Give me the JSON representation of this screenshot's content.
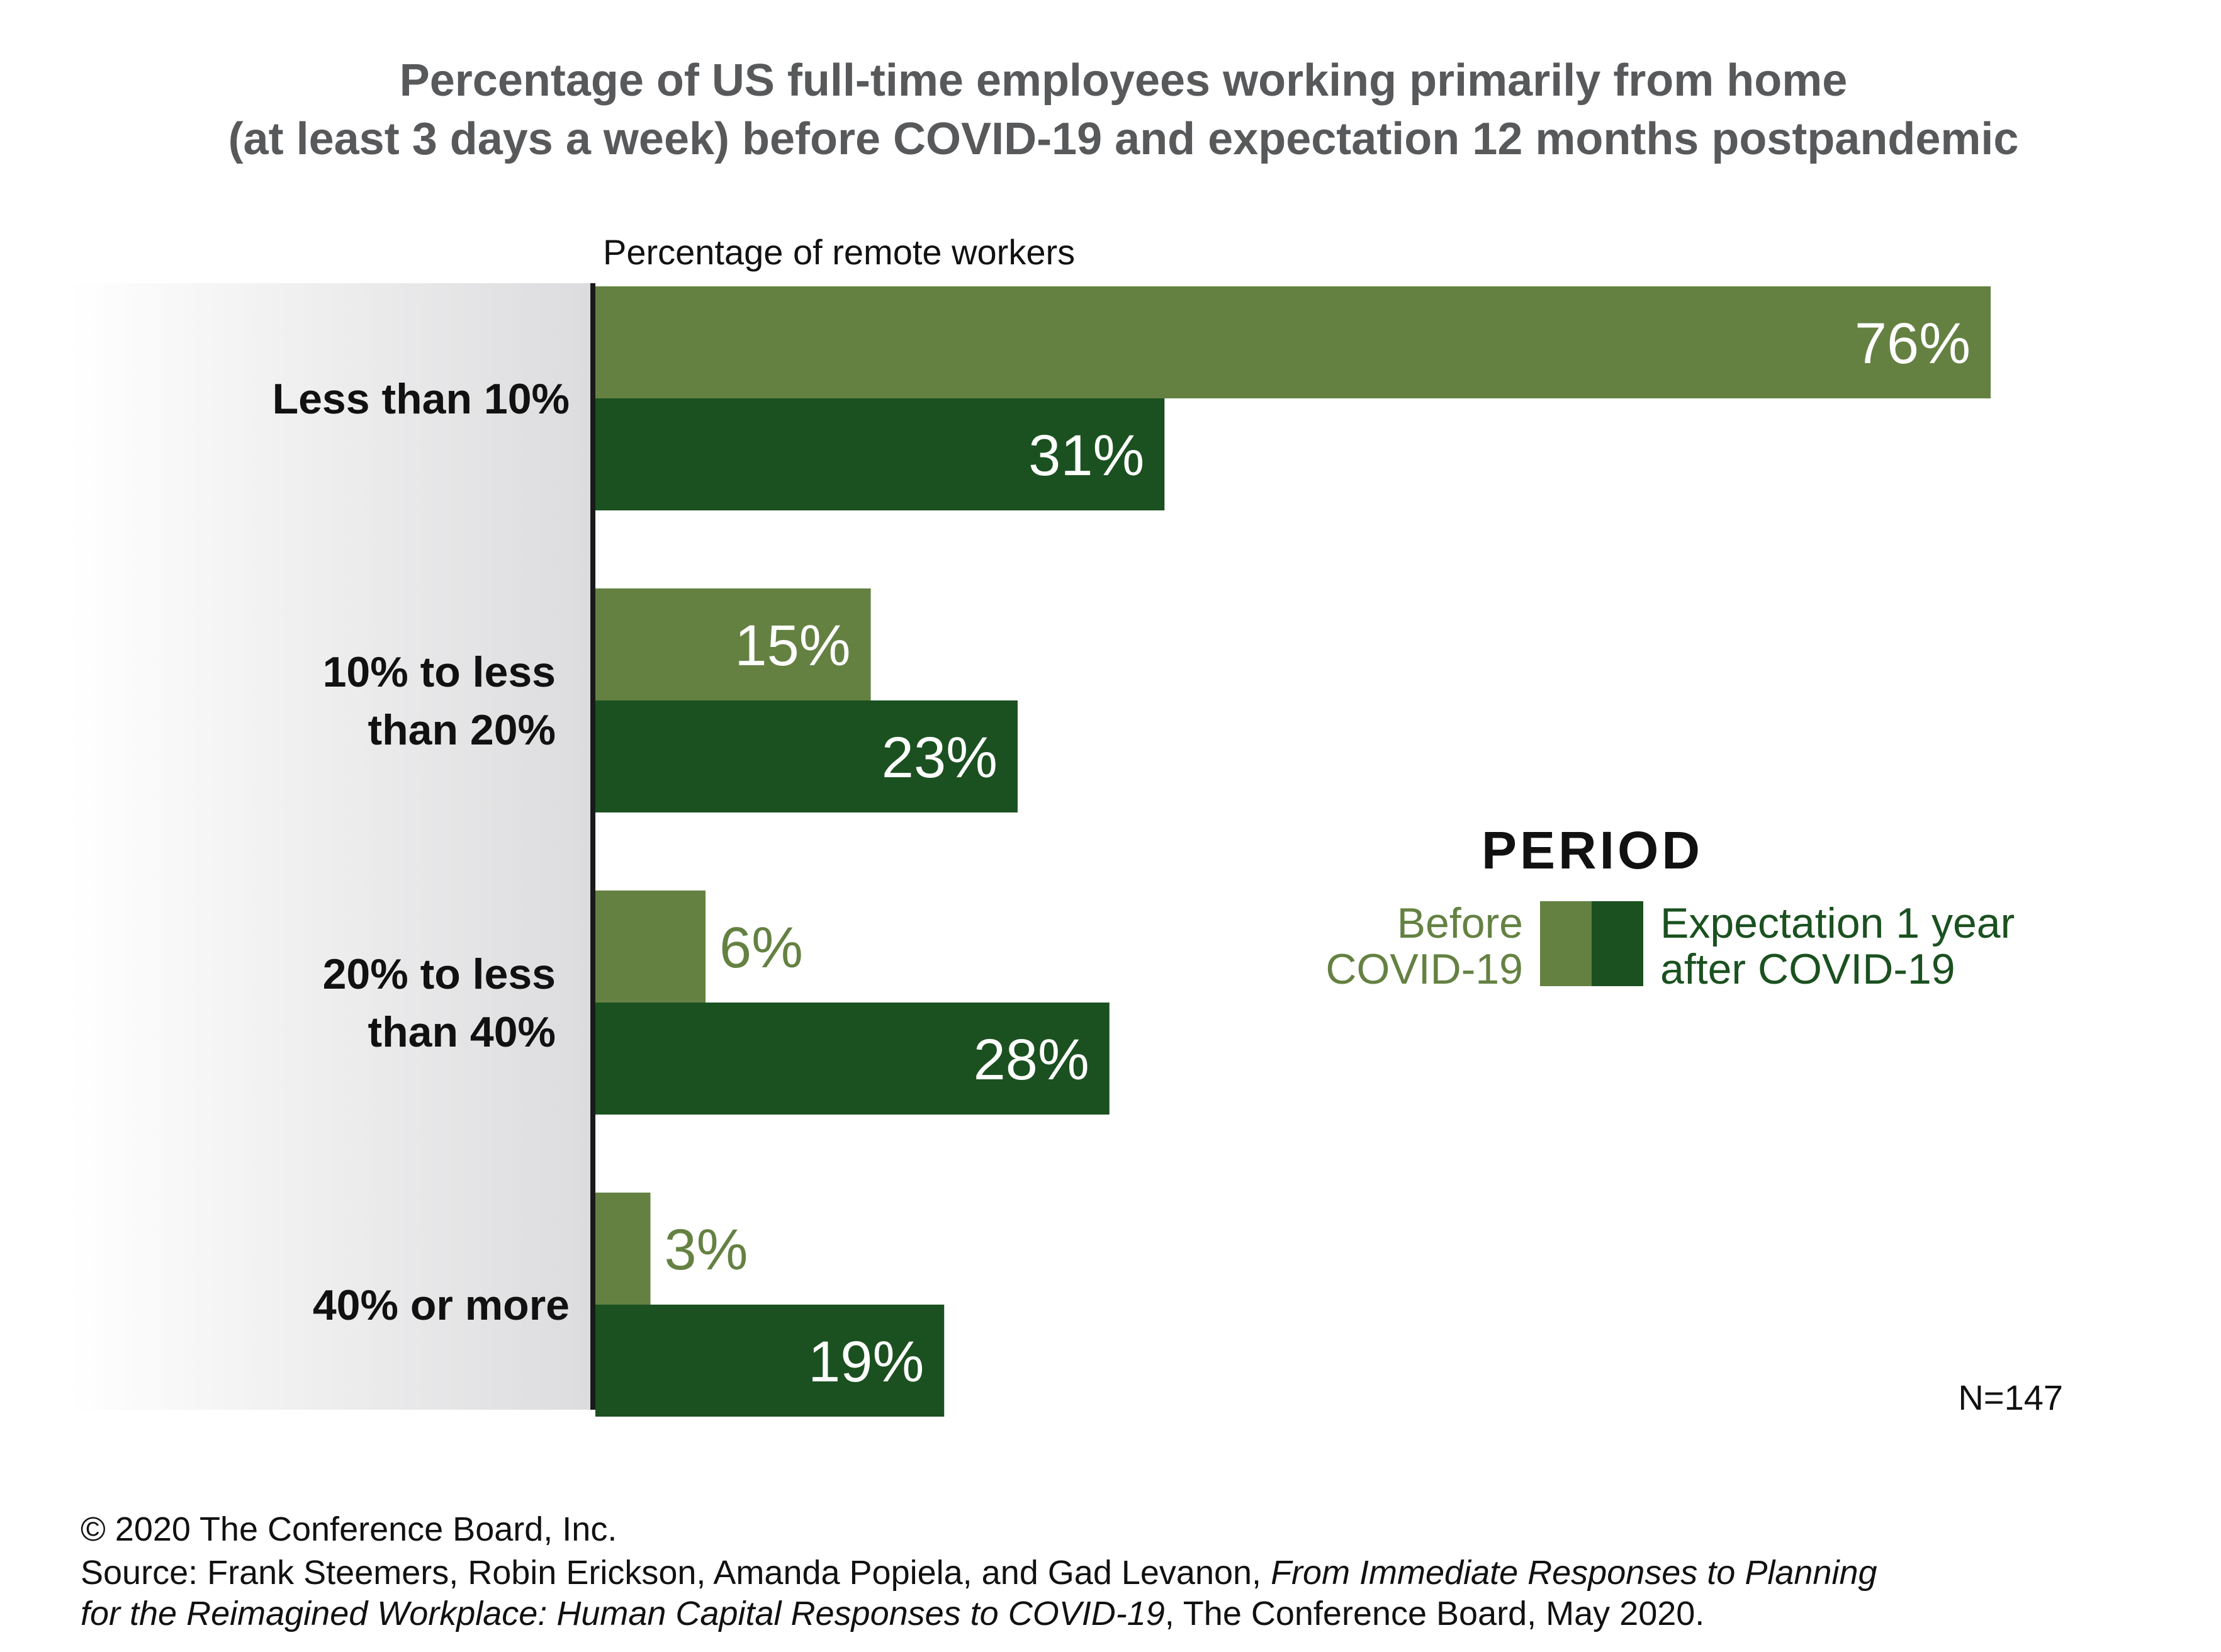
{
  "chart_data": {
    "type": "bar",
    "orientation": "horizontal",
    "title": [
      "Percentage of US full-time employees working primarily from home",
      "(at least 3 days a week) before COVID-19 and expectation 12 months postpandemic"
    ],
    "xlabel": "Percentage of remote workers",
    "xlim": [
      0,
      80
    ],
    "grid": false,
    "categories": [
      [
        "Less than 10%"
      ],
      [
        "10% to less",
        "than 20%"
      ],
      [
        "20% to less",
        "than 40%"
      ],
      [
        "40% or more"
      ]
    ],
    "series": [
      {
        "name": [
          "Before",
          "COVID-19"
        ],
        "values": [
          76,
          15,
          6,
          3
        ],
        "color": "#648142",
        "label_color": "#648142"
      },
      {
        "name": [
          "Expectation 1 year",
          "after COVID-19"
        ],
        "values": [
          31,
          23,
          28,
          19
        ],
        "color": "#1b5120",
        "label_color": "#1b5120"
      }
    ],
    "value_suffix": "%",
    "legend": {
      "title": "PERIOD",
      "placement": "right"
    },
    "note": "N=147",
    "source": [
      "© 2020 The Conference Board, Inc.",
      "Source: Frank Steemers, Robin Erickson, Amanda Popiela, and Gad Levanon, ",
      "From Immediate Responses to Planning",
      "for the Reimagined Workplace: Human Capital Responses to COVID-19",
      ", The Conference Board, May 2020."
    ]
  }
}
